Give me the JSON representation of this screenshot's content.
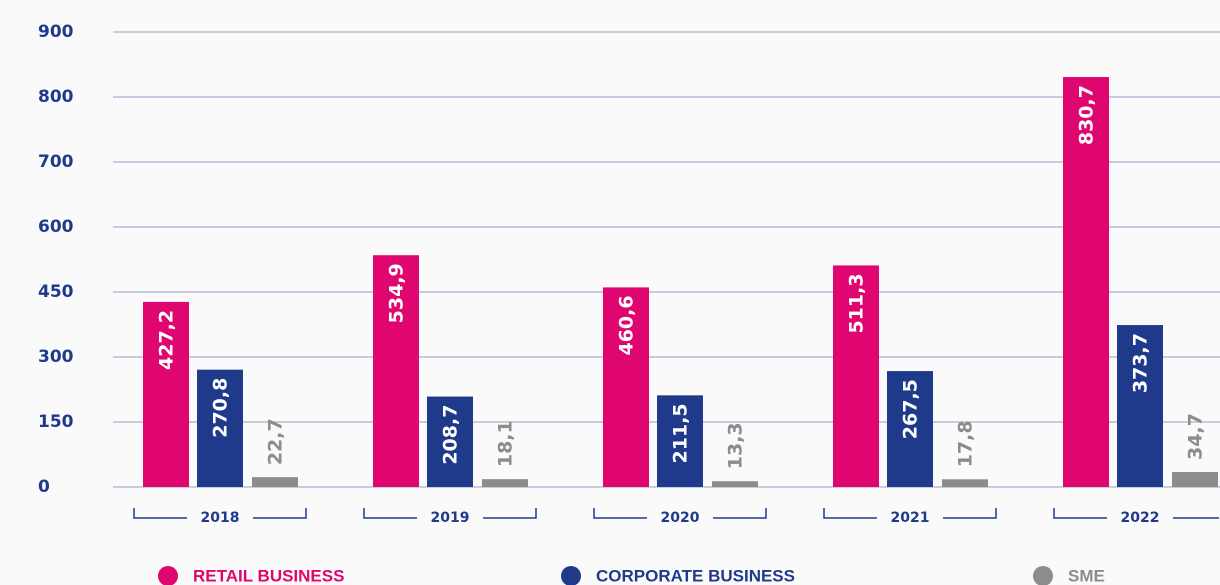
{
  "chart_data": {
    "type": "bar",
    "categories": [
      "2018",
      "2019",
      "2020",
      "2021",
      "2022"
    ],
    "series": [
      {
        "name": "RETAIL BUSINESS",
        "color": "#e0066f",
        "values": [
          427.2,
          534.9,
          460.6,
          511.3,
          830.7
        ],
        "value_labels": [
          "427,2",
          "534,9",
          "460,6",
          "511,3",
          "830,7"
        ]
      },
      {
        "name": "CORPORATE BUSINESS",
        "color": "#1f3a8a",
        "values": [
          270.8,
          208.7,
          211.5,
          267.5,
          373.7
        ],
        "value_labels": [
          "270,8",
          "208,7",
          "211,5",
          "267,5",
          "373,7"
        ]
      },
      {
        "name": "SME",
        "color": "#8c8c8c",
        "values": [
          22.7,
          18.1,
          13.3,
          17.8,
          34.7
        ],
        "value_labels": [
          "22,7",
          "18,1",
          "13,3",
          "17,8",
          "34,7"
        ]
      }
    ],
    "ylim": [
      0,
      900
    ],
    "yticks": [
      0,
      150,
      300,
      450,
      600,
      700,
      800,
      900
    ],
    "grid": true,
    "legend": "bottom"
  }
}
